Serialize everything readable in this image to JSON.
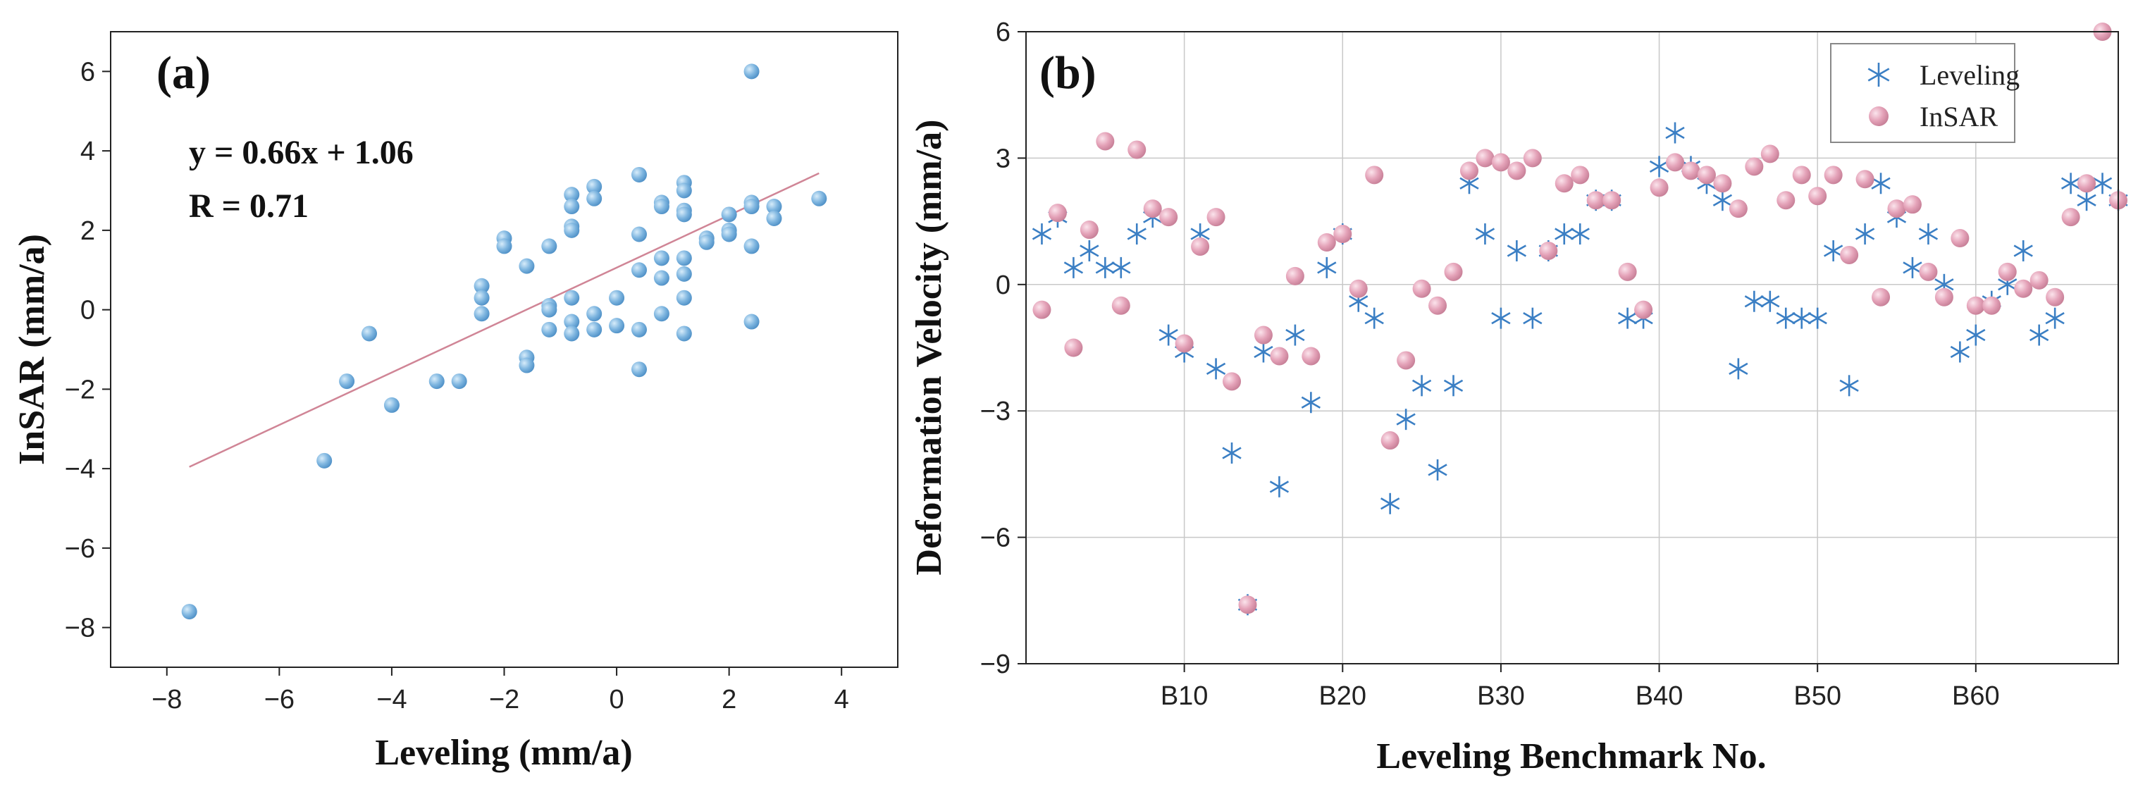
{
  "colors": {
    "blue": "#5b9bd5",
    "pink": "#e0a3b8",
    "line": "#d08596",
    "star": "#3b7fc4",
    "grid": "#c8c8c8"
  },
  "chart_data": [
    {
      "type": "scatter",
      "panel_label": "(a)",
      "xlabel": "Leveling (mm/a)",
      "ylabel": "InSAR (mm/a)",
      "xlim": [
        -9,
        5
      ],
      "ylim": [
        -9,
        7
      ],
      "xticks": [
        -8,
        -6,
        -4,
        -2,
        0,
        2,
        4
      ],
      "yticks": [
        -8,
        -6,
        -4,
        -2,
        0,
        2,
        4,
        6
      ],
      "xtick_labels": [
        "−8",
        "−6",
        "−4",
        "−2",
        "0",
        "2",
        "4"
      ],
      "ytick_labels": [
        "−8",
        "−6",
        "−4",
        "−2",
        "0",
        "2",
        "4",
        "6"
      ],
      "grid": false,
      "equation": "y = 0.66x + 1.06",
      "r_text": "R = 0.71",
      "fit_line": {
        "slope": 0.66,
        "intercept": 1.06,
        "x_range": [
          -7.6,
          3.6
        ]
      },
      "points": [
        [
          -7.6,
          -7.6
        ],
        [
          -5.2,
          -3.8
        ],
        [
          -4.8,
          -1.8
        ],
        [
          -4.4,
          -0.6
        ],
        [
          -4,
          -2.4
        ],
        [
          -3.2,
          -1.8
        ],
        [
          -2.8,
          -1.8
        ],
        [
          -2.4,
          0.6
        ],
        [
          -2.4,
          0.3
        ],
        [
          -2.4,
          -0.1
        ],
        [
          -2,
          1.8
        ],
        [
          -2,
          1.6
        ],
        [
          -1.6,
          1.1
        ],
        [
          -1.6,
          -1.2
        ],
        [
          -1.6,
          -1.4
        ],
        [
          -1.2,
          1.6
        ],
        [
          -1.2,
          0.1
        ],
        [
          -1.2,
          0
        ],
        [
          -1.2,
          -0.5
        ],
        [
          -0.8,
          2.9
        ],
        [
          -0.8,
          2.6
        ],
        [
          -0.8,
          2.1
        ],
        [
          -0.8,
          2
        ],
        [
          -0.8,
          0.3
        ],
        [
          -0.8,
          -0.3
        ],
        [
          -0.8,
          -0.6
        ],
        [
          -0.4,
          3.1
        ],
        [
          -0.4,
          2.8
        ],
        [
          -0.4,
          -0.1
        ],
        [
          -0.4,
          -0.5
        ],
        [
          0,
          0.3
        ],
        [
          0,
          -0.4
        ],
        [
          0.4,
          3.4
        ],
        [
          0.4,
          1.9
        ],
        [
          0.4,
          1
        ],
        [
          0.4,
          -0.5
        ],
        [
          0.4,
          -1.5
        ],
        [
          0.8,
          2.7
        ],
        [
          0.8,
          2.6
        ],
        [
          0.8,
          1.3
        ],
        [
          0.8,
          0.8
        ],
        [
          0.8,
          -0.1
        ],
        [
          1.2,
          3.2
        ],
        [
          1.2,
          3
        ],
        [
          1.2,
          2.5
        ],
        [
          1.2,
          2.4
        ],
        [
          1.2,
          1.3
        ],
        [
          1.2,
          0.9
        ],
        [
          1.2,
          0.3
        ],
        [
          1.2,
          -0.6
        ],
        [
          1.6,
          1.8
        ],
        [
          1.6,
          1.7
        ],
        [
          2,
          2.4
        ],
        [
          2,
          2
        ],
        [
          2,
          1.9
        ],
        [
          2.4,
          6
        ],
        [
          2.4,
          2.7
        ],
        [
          2.4,
          2.6
        ],
        [
          2.4,
          1.6
        ],
        [
          2.4,
          -0.3
        ],
        [
          2.8,
          2.6
        ],
        [
          2.8,
          2.3
        ],
        [
          3.6,
          2.8
        ]
      ]
    },
    {
      "type": "scatter",
      "panel_label": "(b)",
      "xlabel": "Leveling Benchmark No.",
      "ylabel": "Deformation Velocity (mm/a)",
      "xlim": [
        0,
        69
      ],
      "ylim": [
        -9,
        6
      ],
      "xticks": [
        10,
        20,
        30,
        40,
        50,
        60
      ],
      "xtick_labels": [
        "B10",
        "B20",
        "B30",
        "B40",
        "B50",
        "B60"
      ],
      "yticks": [
        -9,
        -6,
        -3,
        0,
        3,
        6
      ],
      "ytick_labels": [
        "−9",
        "−6",
        "−3",
        "0",
        "3",
        "6"
      ],
      "grid": true,
      "legend_position": "top-right",
      "series": [
        {
          "name": "Leveling",
          "marker": "asterisk",
          "values": [
            1.2,
            1.6,
            0.4,
            0.8,
            0.4,
            0.4,
            1.2,
            1.6,
            -1.2,
            -1.6,
            1.2,
            -2,
            -4,
            -7.6,
            -1.6,
            -4.8,
            -1.2,
            -2.8,
            0.4,
            1.2,
            -0.4,
            -0.8,
            -5.2,
            -3.2,
            -2.4,
            -4.4,
            -2.4,
            2.4,
            1.2,
            -0.8,
            0.8,
            -0.8,
            0.8,
            1.2,
            1.2,
            2,
            2,
            -0.8,
            -0.8,
            2.8,
            3.6,
            2.8,
            2.4,
            2,
            -2,
            -0.4,
            -0.4,
            -0.8,
            -0.8,
            -0.8,
            0.8,
            -2.4,
            1.2,
            2.4,
            1.6,
            0.4,
            1.2,
            0,
            -1.6,
            -1.2,
            -0.4,
            0,
            0.8,
            -1.2,
            -0.8,
            2.4,
            2,
            2.4,
            2
          ]
        },
        {
          "name": "InSAR",
          "marker": "circle",
          "values": [
            -0.6,
            1.7,
            -1.5,
            1.3,
            3.4,
            -0.5,
            3.2,
            1.8,
            1.6,
            -1.4,
            0.9,
            1.6,
            -2.3,
            -7.6,
            -1.2,
            -1.7,
            0.2,
            -1.7,
            1,
            1.2,
            -0.1,
            2.6,
            -3.7,
            -1.8,
            -0.1,
            -0.5,
            0.3,
            2.7,
            3,
            2.9,
            2.7,
            3,
            0.8,
            2.4,
            2.6,
            2,
            2,
            0.3,
            -0.6,
            2.3,
            2.9,
            2.7,
            2.6,
            2.4,
            1.8,
            2.8,
            3.1,
            2,
            2.6,
            2.1,
            2.6,
            0.7,
            2.5,
            -0.3,
            1.8,
            1.9,
            0.3,
            -0.3,
            1.1,
            -0.5,
            -0.5,
            0.3,
            -0.1,
            0.1,
            -0.3,
            1.6,
            2.4,
            6,
            2
          ]
        }
      ]
    }
  ]
}
